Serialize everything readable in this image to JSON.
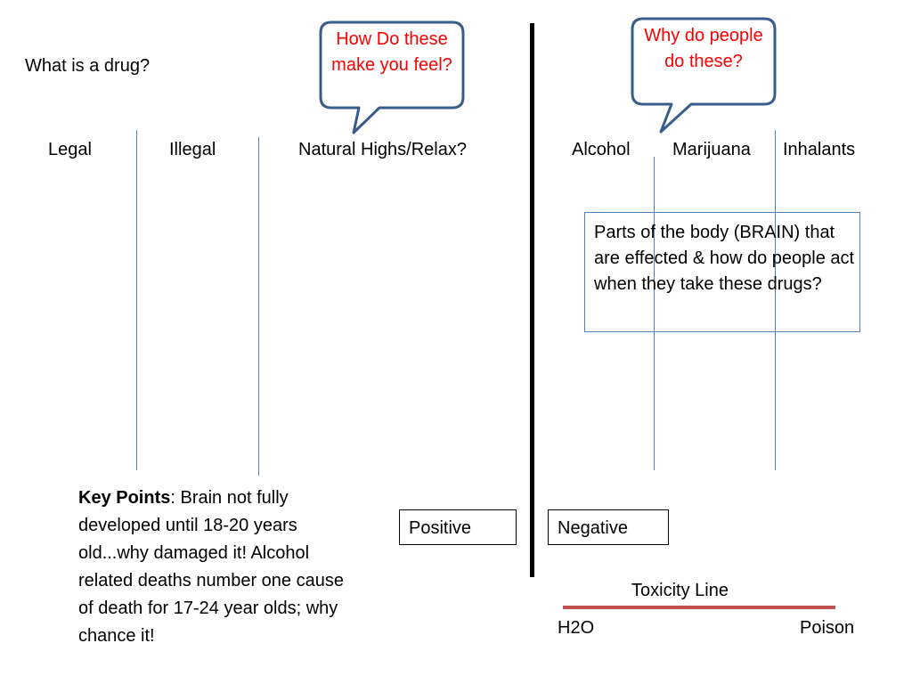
{
  "question": "What is a drug?",
  "columns_left": [
    "Legal",
    "Illegal",
    "Natural Highs/Relax?"
  ],
  "columns_right": [
    "Alcohol",
    "Marijuana",
    "Inhalants"
  ],
  "bubble_feel": "How Do these make you feel?",
  "bubble_why": "Why do people do these?",
  "brain_box": "Parts of the body (BRAIN) that are effected & how do people act when they take these drugs?",
  "key_points": {
    "label": "Key Points",
    "text": ": Brain not fully developed until 18-20 years old...why damaged it! Alcohol related deaths number one cause of death for 17-24 year olds; why chance it!"
  },
  "positive": "Positive",
  "negative": "Negative",
  "toxicity": {
    "title": "Toxicity Line",
    "left": "H2O",
    "right": "Poison"
  },
  "colors": {
    "bubble_text": "#ff0000",
    "bubble_border": "#385d8a",
    "column_lines": "#4f81bd",
    "toxicity_line": "#c0504d"
  }
}
